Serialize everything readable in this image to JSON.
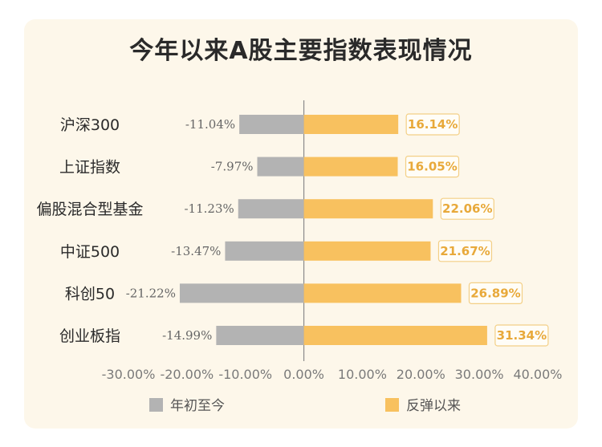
{
  "chart_data": {
    "type": "bar",
    "orientation": "horizontal",
    "title": "今年以来A股主要指数表现情况",
    "categories": [
      "沪深300",
      "上证指数",
      "偏股混合型基金",
      "中证500",
      "科创50",
      "创业板指"
    ],
    "series": [
      {
        "name": "年初至今",
        "color": "#b3b3b3",
        "values": [
          -11.04,
          -7.97,
          -11.23,
          -13.47,
          -21.22,
          -14.99
        ],
        "labels": [
          "-11.04%",
          "-7.97%",
          "-11.23%",
          "-13.47%",
          "-21.22%",
          "-14.99%"
        ]
      },
      {
        "name": "反弹以来",
        "color": "#f8c15f",
        "values": [
          16.14,
          16.05,
          22.06,
          21.67,
          26.89,
          31.34
        ],
        "labels": [
          "16.14%",
          "16.05%",
          "22.06%",
          "21.67%",
          "26.89%",
          "31.34%"
        ]
      }
    ],
    "xlim": [
      -30,
      40
    ],
    "xticks": [
      "-30.00%",
      "-20.00%",
      "-10.00%",
      "0.00%",
      "10.00%",
      "20.00%",
      "30.00%",
      "40.00%"
    ],
    "grid": false,
    "legend_position": "bottom"
  }
}
